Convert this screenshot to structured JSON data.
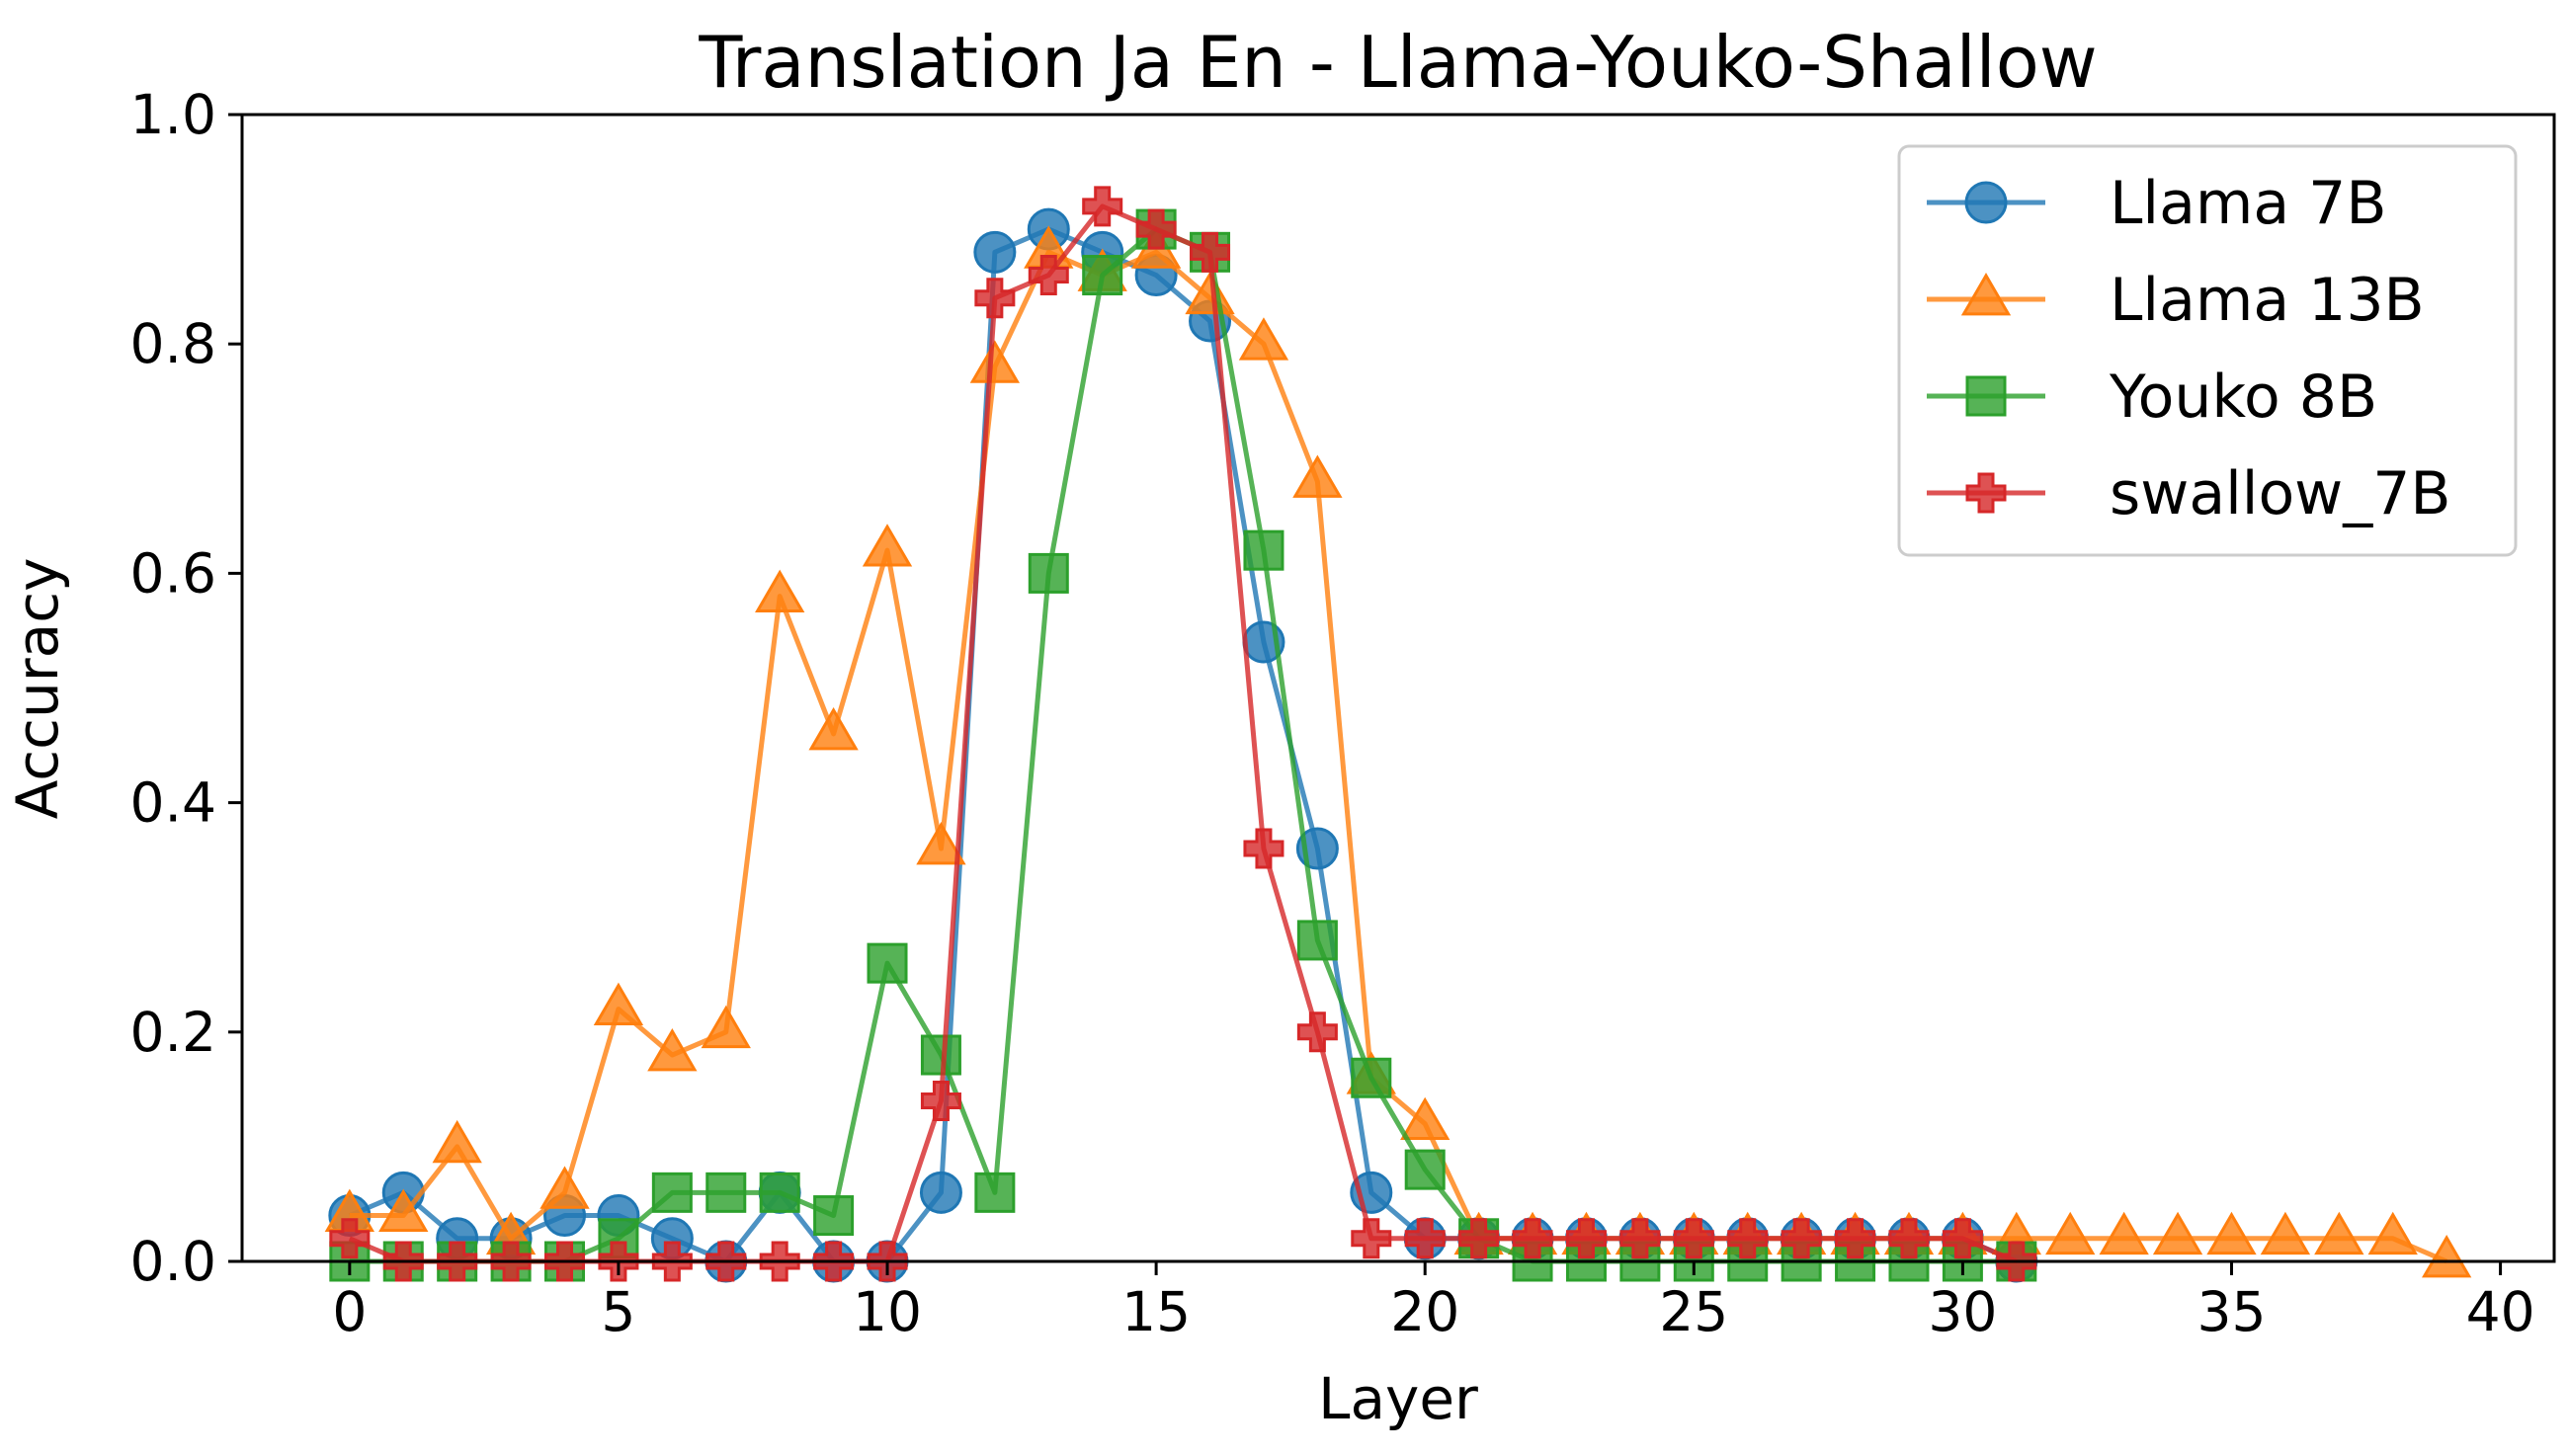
{
  "chart_data": {
    "type": "line",
    "title": "Translation Ja En - Llama-Youko-Shallow",
    "xlabel": "Layer",
    "ylabel": "Accuracy",
    "xlim": [
      -2,
      41
    ],
    "ylim": [
      0,
      1
    ],
    "xticks": [
      0,
      5,
      10,
      15,
      20,
      25,
      30,
      35,
      40
    ],
    "yticks": [
      0.0,
      0.2,
      0.4,
      0.6,
      0.8,
      1.0
    ],
    "grid": false,
    "legend_position": "top-right",
    "series": [
      {
        "name": "Llama 7B",
        "color": "#1f77b4",
        "marker": "circle",
        "x": [
          0,
          1,
          2,
          3,
          4,
          5,
          6,
          7,
          8,
          9,
          10,
          11,
          12,
          13,
          14,
          15,
          16,
          17,
          18,
          19,
          20,
          21,
          22,
          23,
          24,
          25,
          26,
          27,
          28,
          29,
          30,
          31
        ],
        "y": [
          0.04,
          0.06,
          0.02,
          0.02,
          0.04,
          0.04,
          0.02,
          0.0,
          0.06,
          0.0,
          0.0,
          0.06,
          0.88,
          0.9,
          0.88,
          0.86,
          0.82,
          0.54,
          0.36,
          0.06,
          0.02,
          0.02,
          0.02,
          0.02,
          0.02,
          0.02,
          0.02,
          0.02,
          0.02,
          0.02,
          0.02,
          0.0
        ]
      },
      {
        "name": "Llama 13B",
        "color": "#ff7f0e",
        "marker": "triangle",
        "x": [
          0,
          1,
          2,
          3,
          4,
          5,
          6,
          7,
          8,
          9,
          10,
          11,
          12,
          13,
          14,
          15,
          16,
          17,
          18,
          19,
          20,
          21,
          22,
          23,
          24,
          25,
          26,
          27,
          28,
          29,
          30,
          31,
          32,
          33,
          34,
          35,
          36,
          37,
          38,
          39
        ],
        "y": [
          0.04,
          0.04,
          0.1,
          0.02,
          0.06,
          0.22,
          0.18,
          0.2,
          0.58,
          0.46,
          0.62,
          0.36,
          0.78,
          0.88,
          0.86,
          0.88,
          0.84,
          0.8,
          0.68,
          0.16,
          0.12,
          0.02,
          0.02,
          0.02,
          0.02,
          0.02,
          0.02,
          0.02,
          0.02,
          0.02,
          0.02,
          0.02,
          0.02,
          0.02,
          0.02,
          0.02,
          0.02,
          0.02,
          0.02,
          0.0
        ]
      },
      {
        "name": "Youko 8B",
        "color": "#2ca02c",
        "marker": "square",
        "x": [
          0,
          1,
          2,
          3,
          4,
          5,
          6,
          7,
          8,
          9,
          10,
          11,
          12,
          13,
          14,
          15,
          16,
          17,
          18,
          19,
          20,
          21,
          22,
          23,
          24,
          25,
          26,
          27,
          28,
          29,
          30,
          31
        ],
        "y": [
          0.0,
          0.0,
          0.0,
          0.0,
          0.0,
          0.02,
          0.06,
          0.06,
          0.06,
          0.04,
          0.26,
          0.18,
          0.06,
          0.6,
          0.86,
          0.9,
          0.88,
          0.62,
          0.28,
          0.16,
          0.08,
          0.02,
          0.0,
          0.0,
          0.0,
          0.0,
          0.0,
          0.0,
          0.0,
          0.0,
          0.0,
          0.0
        ]
      },
      {
        "name": "swallow_7B",
        "color": "#d62728",
        "marker": "plus",
        "x": [
          0,
          1,
          2,
          3,
          4,
          5,
          6,
          7,
          8,
          9,
          10,
          11,
          12,
          13,
          14,
          15,
          16,
          17,
          18,
          19,
          20,
          21,
          22,
          23,
          24,
          25,
          26,
          27,
          28,
          29,
          30,
          31
        ],
        "y": [
          0.02,
          0.0,
          0.0,
          0.0,
          0.0,
          0.0,
          0.0,
          0.0,
          0.0,
          0.0,
          0.0,
          0.14,
          0.84,
          0.86,
          0.92,
          0.9,
          0.88,
          0.36,
          0.2,
          0.02,
          0.02,
          0.02,
          0.02,
          0.02,
          0.02,
          0.02,
          0.02,
          0.02,
          0.02,
          0.02,
          0.02,
          0.0
        ]
      }
    ]
  }
}
